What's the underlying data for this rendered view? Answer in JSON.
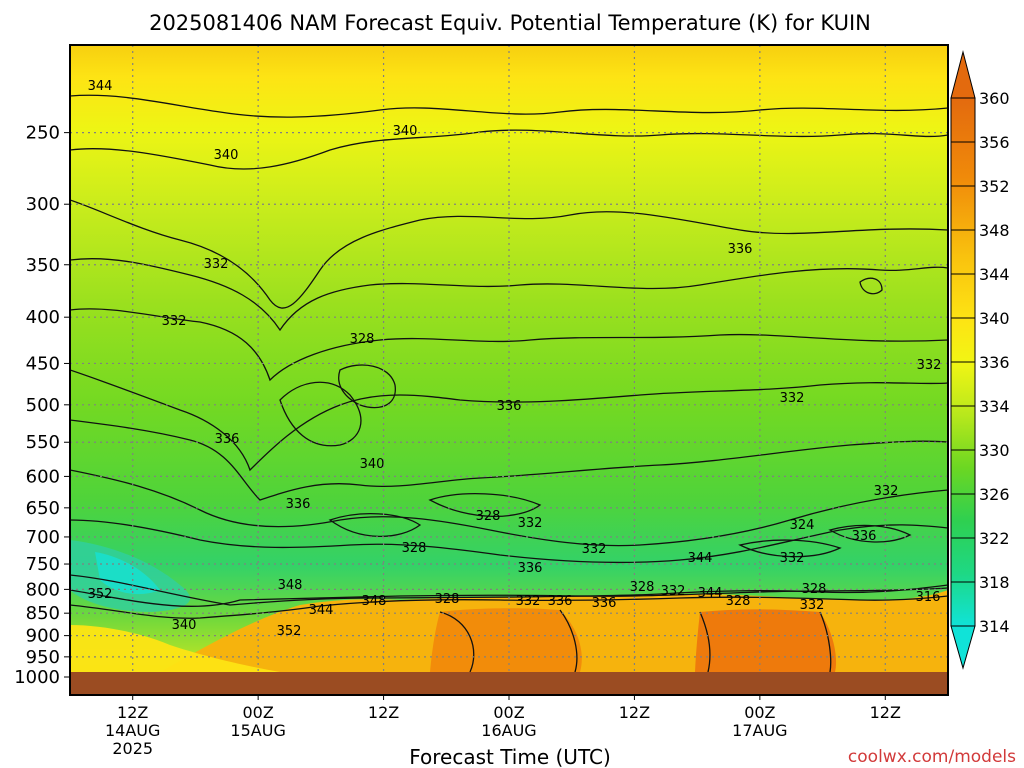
{
  "chart_data": {
    "type": "heatmap",
    "title": "2025081406 NAM Forecast Equiv. Potential Temperature (K) for KUIN",
    "xlabel": "Forecast Time (UTC)",
    "ylabel": "",
    "credit": "coolwx.com/models",
    "y_scale": "log-pressure",
    "ylim": [
      1000,
      200
    ],
    "y_ticks": [
      "250",
      "300",
      "350",
      "400",
      "450",
      "500",
      "550",
      "600",
      "650",
      "700",
      "750",
      "800",
      "850",
      "900",
      "950",
      "1000"
    ],
    "x_ticks": [
      {
        "label": "12Z",
        "date": "14AUG",
        "year": "2025",
        "hour": 12
      },
      {
        "label": "00Z",
        "date": "15AUG",
        "year": "",
        "hour": 24
      },
      {
        "label": "12Z",
        "date": "",
        "year": "",
        "hour": 36
      },
      {
        "label": "00Z",
        "date": "16AUG",
        "year": "",
        "hour": 48
      },
      {
        "label": "12Z",
        "date": "",
        "year": "",
        "hour": 60
      },
      {
        "label": "00Z",
        "date": "17AUG",
        "year": "",
        "hour": 72
      },
      {
        "label": "12Z",
        "date": "",
        "year": "",
        "hour": 84
      }
    ],
    "xlim_hours": [
      6,
      90
    ],
    "colorbar": {
      "labels": [
        "360",
        "356",
        "352",
        "348",
        "344",
        "340",
        "336",
        "334",
        "330",
        "326",
        "322",
        "318",
        "314"
      ],
      "colors": [
        "#e36a0e",
        "#f08a0a",
        "#f6a20a",
        "#f9c20e",
        "#fde414",
        "#f2f514",
        "#c2ea1c",
        "#8edd1e",
        "#59d128",
        "#2fd050",
        "#1ed884",
        "#18dfb4",
        "#10e3d8"
      ]
    },
    "contour_labels": [
      "344",
      "340",
      "340",
      "336",
      "332",
      "332",
      "328",
      "332",
      "332",
      "336",
      "336",
      "340",
      "336",
      "328",
      "332",
      "332",
      "324",
      "328",
      "332",
      "336",
      "344",
      "332",
      "336",
      "352",
      "340",
      "348",
      "344",
      "352",
      "348",
      "328",
      "332",
      "336",
      "336",
      "332",
      "328",
      "344",
      "328",
      "328",
      "332",
      "316"
    ],
    "colors": {
      "underground": "#9b4c22",
      "grid": "#808080"
    }
  }
}
